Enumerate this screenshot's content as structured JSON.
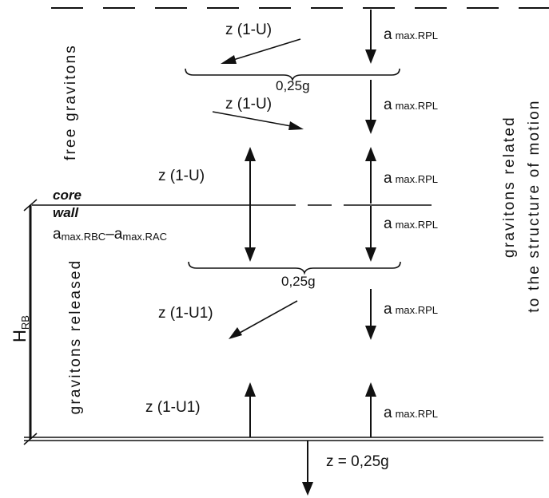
{
  "labels": {
    "free_gravitons": "free gravitons",
    "gravitons_released": "gravitons released",
    "related_line1": "gravitons related",
    "related_line2": "to the structure of motion",
    "core": "core",
    "wall": "wall",
    "h_main": "H",
    "h_sub": "RB",
    "a_main": "a",
    "a_sub": "max.RPL",
    "a_rbc_sub": "max.RBC",
    "a_rac_sub": "max.RAC",
    "minus": "–",
    "z_1_u": "z (1-U)",
    "z_1_u1": "z (1-U1)",
    "quarter_g": "0,25g",
    "bottom_eq": "z = 0,25g"
  }
}
